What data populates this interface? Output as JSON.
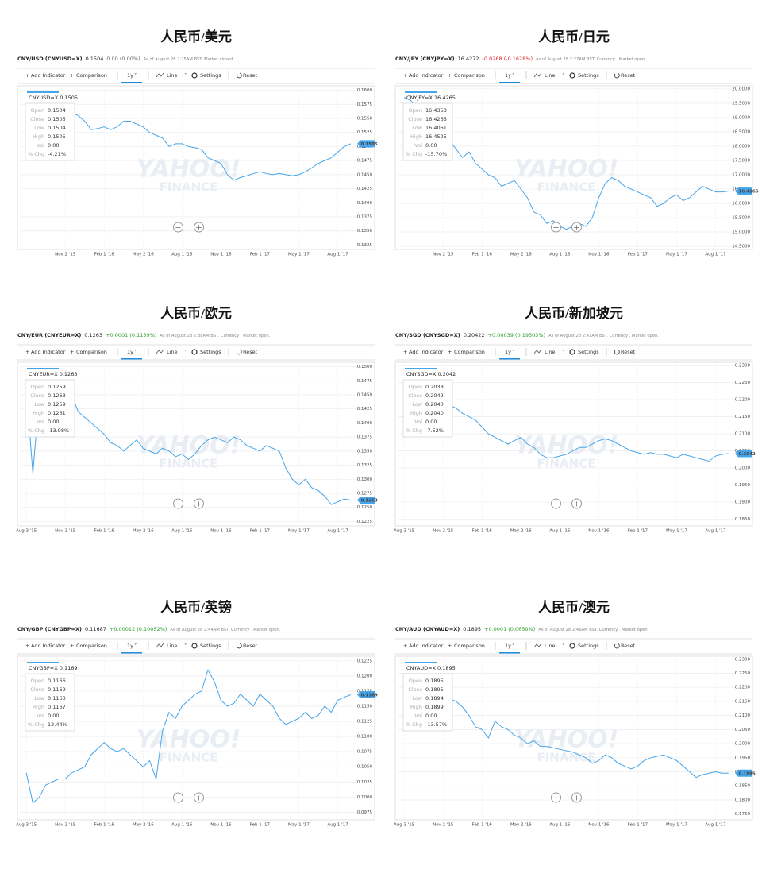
{
  "toolbar": {
    "add_indicator": "Add Indicator",
    "comparison": "Comparison",
    "range": "1y",
    "chart_style": "Line",
    "settings": "Settings",
    "reset": "Reset"
  },
  "tooltip_labels": [
    "Open",
    "Close",
    "Low",
    "High",
    "Vol",
    "% Chg"
  ],
  "watermark": {
    "line1": "YAHOO!",
    "line2": "FINANCE"
  },
  "chart_data": [
    {
      "type": "line",
      "title": "人民币/美元",
      "symbol": "CNY/USD (CNYUSD=X)",
      "price": "0.1504",
      "change": "0.00 (0.00%)",
      "change_color": "#666666",
      "note": "As of August 28 2:25AM BST. Market closed.",
      "tooltip": {
        "label": "CNYUSD=X 0.1505",
        "values": [
          "0.1504",
          "0.1505",
          "0.1504",
          "0.1505",
          "0.00",
          "-4.21%"
        ]
      },
      "last_label": "0.1505",
      "color": "#45a5ea",
      "grid": true,
      "xlim": [
        -1,
        51
      ],
      "xticks": [
        {
          "value": 6,
          "label": "Nov 2 '15"
        },
        {
          "value": 12,
          "label": "Feb 1 '16"
        },
        {
          "value": 18,
          "label": "May 2 '16"
        },
        {
          "value": 24,
          "label": "Aug 1 '16"
        },
        {
          "value": 30,
          "label": "Nov 1 '16"
        },
        {
          "value": 36,
          "label": "Feb 1 '17"
        },
        {
          "value": 42,
          "label": "May 1 '17"
        },
        {
          "value": 48,
          "label": "Aug 1 '17"
        }
      ],
      "ylim": [
        0.132,
        0.1605
      ],
      "yticks": [
        {
          "value": 0.16,
          "label": "0.1600"
        },
        0.1575,
        {
          "value": 0.155,
          "label": "0.1550"
        },
        0.1525,
        {
          "value": 0.15,
          "label": "0.1500"
        },
        0.1475,
        {
          "value": 0.145,
          "label": "0.1450"
        },
        0.1425,
        {
          "value": 0.14,
          "label": "0.1400"
        },
        0.1375,
        {
          "value": 0.135,
          "label": "0.1350"
        },
        0.1325
      ],
      "values": [
        0.157,
        0.1565,
        0.1568,
        0.1572,
        0.1573,
        0.157,
        0.1565,
        0.156,
        0.1555,
        0.1545,
        0.153,
        0.1532,
        0.1535,
        0.153,
        0.1535,
        0.1545,
        0.1545,
        0.154,
        0.1535,
        0.1525,
        0.152,
        0.1515,
        0.15,
        0.1505,
        0.1505,
        0.15,
        0.1498,
        0.1495,
        0.148,
        0.1475,
        0.147,
        0.145,
        0.144,
        0.1445,
        0.1448,
        0.1452,
        0.1455,
        0.1452,
        0.145,
        0.1452,
        0.145,
        0.1448,
        0.145,
        0.1455,
        0.1462,
        0.147,
        0.1475,
        0.148,
        0.149,
        0.15,
        0.1505
      ]
    },
    {
      "type": "line",
      "title": "人民币/日元",
      "symbol": "CNY/JPY (CNYJPY=X)",
      "price": "16.4272",
      "change": "-0.0268 (-0.1628%)",
      "change_color": "#e0272f",
      "note": "As of August 28 2:27AM BST. Currency . Market open.",
      "tooltip": {
        "label": "CNYJPY=X 16.4265",
        "values": [
          "16.4353",
          "16.4265",
          "16.4061",
          "16.4525",
          "0.00",
          "-15.70%"
        ]
      },
      "last_label": "16.4265",
      "color": "#45a5ea",
      "grid": true,
      "xlim": [
        -1,
        51
      ],
      "xticks": [
        {
          "value": 6,
          "label": "Nov 2 '15"
        },
        {
          "value": 12,
          "label": "Feb 1 '16"
        },
        {
          "value": 18,
          "label": "May 2 '16"
        },
        {
          "value": 24,
          "label": "Aug 1 '16"
        },
        {
          "value": 30,
          "label": "Nov 1 '16"
        },
        {
          "value": 36,
          "label": "Feb 1 '17"
        },
        {
          "value": 42,
          "label": "May 1 '17"
        },
        {
          "value": 48,
          "label": "Aug 1 '17"
        }
      ],
      "ylim": [
        14.45,
        20.05
      ],
      "yticks": [
        {
          "value": 20,
          "label": "20.0000"
        },
        {
          "value": 19.5,
          "label": "19.5000"
        },
        {
          "value": 19,
          "label": "19.0000"
        },
        {
          "value": 18.5,
          "label": "18.5000"
        },
        {
          "value": 18,
          "label": "18.0000"
        },
        {
          "value": 17.5,
          "label": "17.5000"
        },
        {
          "value": 17,
          "label": "17.0000"
        },
        {
          "value": 16.5,
          "label": "16.5000"
        },
        {
          "value": 16,
          "label": "16.0000"
        },
        {
          "value": 15.5,
          "label": "15.5000"
        },
        {
          "value": 15,
          "label": "15.0000"
        },
        {
          "value": 14.5,
          "label": "14.5000"
        }
      ],
      "values": [
        19.7,
        19.6,
        19.3,
        19.2,
        19.3,
        19.0,
        18.6,
        18.2,
        17.9,
        17.6,
        17.8,
        17.4,
        17.2,
        17.0,
        16.9,
        16.6,
        16.7,
        16.8,
        16.5,
        16.2,
        15.7,
        15.6,
        15.3,
        15.4,
        15.2,
        15.1,
        15.2,
        15.3,
        15.2,
        15.5,
        16.2,
        16.7,
        16.9,
        16.8,
        16.6,
        16.5,
        16.4,
        16.3,
        16.2,
        15.9,
        16.0,
        16.2,
        16.3,
        16.1,
        16.2,
        16.4,
        16.6,
        16.5,
        16.4,
        16.4,
        16.43
      ]
    },
    {
      "type": "line",
      "title": "人民币/欧元",
      "symbol": "CNY/EUR (CNYEUR=X)",
      "price": "0.1263",
      "change": "+0.0001 (0.1159%)",
      "change_color": "#2ca02c",
      "note": "As of August 28 2:38AM BST. Currency . Market open.",
      "tooltip": {
        "label": "CNYEUR=X 0.1263",
        "values": [
          "0.1259",
          "0.1263",
          "0.1259",
          "0.1261",
          "0.00",
          "-13.98%"
        ]
      },
      "last_label": "0.1263",
      "color": "#45a5ea",
      "grid": true,
      "xlim": [
        -1,
        51
      ],
      "xticks": [
        {
          "value": 0,
          "label": "Aug 3 '15"
        },
        {
          "value": 6,
          "label": "Nov 2 '15"
        },
        {
          "value": 12,
          "label": "Feb 1 '16"
        },
        {
          "value": 18,
          "label": "May 2 '16"
        },
        {
          "value": 24,
          "label": "Aug 1 '16"
        },
        {
          "value": 30,
          "label": "Nov 1 '16"
        },
        {
          "value": 36,
          "label": "Feb 1 '17"
        },
        {
          "value": 42,
          "label": "May 1 '17"
        },
        {
          "value": 48,
          "label": "Aug 1 '17"
        }
      ],
      "ylim": [
        0.122,
        0.1505
      ],
      "yticks": [
        {
          "value": 0.15,
          "label": "0.1500"
        },
        0.1475,
        {
          "value": 0.145,
          "label": "0.1450"
        },
        0.1425,
        {
          "value": 0.14,
          "label": "0.1400"
        },
        0.1375,
        {
          "value": 0.135,
          "label": "0.1350"
        },
        0.1325,
        {
          "value": 0.13,
          "label": "0.1300"
        },
        0.1275,
        {
          "value": 0.125,
          "label": "0.1250"
        },
        0.1225
      ],
      "values": [
        0.1465,
        0.131,
        0.145,
        0.144,
        0.1455,
        0.143,
        0.144,
        0.145,
        0.142,
        0.141,
        0.14,
        0.139,
        0.138,
        0.1365,
        0.136,
        0.135,
        0.136,
        0.137,
        0.1355,
        0.135,
        0.1345,
        0.1355,
        0.135,
        0.134,
        0.1345,
        0.1335,
        0.1345,
        0.136,
        0.137,
        0.1375,
        0.137,
        0.1365,
        0.1375,
        0.137,
        0.136,
        0.1355,
        0.135,
        0.136,
        0.1355,
        0.135,
        0.132,
        0.13,
        0.129,
        0.13,
        0.1285,
        0.128,
        0.127,
        0.1255,
        0.126,
        0.1265,
        0.1263
      ]
    },
    {
      "type": "line",
      "title": "人民币/新加坡元",
      "symbol": "CNY/SGD (CNYSGD=X)",
      "price": "0.20422",
      "change": "+0.00039 (0.19303%)",
      "change_color": "#2ca02c",
      "note": "As of August 28 2:41AM BST. Currency . Market open.",
      "tooltip": {
        "label": "CNYSGD=X 0.2042",
        "values": [
          "0.2038",
          "0.2042",
          "0.2040",
          "0.2040",
          "0.00",
          "-7.52%"
        ]
      },
      "last_label": "0.2042",
      "color": "#45a5ea",
      "grid": true,
      "xlim": [
        -1,
        51
      ],
      "xticks": [
        {
          "value": 0,
          "label": "Aug 3 '15"
        },
        {
          "value": 6,
          "label": "Nov 2 '15"
        },
        {
          "value": 12,
          "label": "Feb 1 '16"
        },
        {
          "value": 18,
          "label": "May 2 '16"
        },
        {
          "value": 24,
          "label": "Aug 1 '16"
        },
        {
          "value": 30,
          "label": "Nov 1 '16"
        },
        {
          "value": 36,
          "label": "Feb 1 '17"
        },
        {
          "value": 42,
          "label": "May 1 '17"
        },
        {
          "value": 48,
          "label": "Aug 1 '17"
        }
      ],
      "ylim": [
        0.1835,
        0.2305
      ],
      "yticks": [
        {
          "value": 0.23,
          "label": "0.2300"
        },
        {
          "value": 0.225,
          "label": "0.2250"
        },
        {
          "value": 0.22,
          "label": "0.2200"
        },
        {
          "value": 0.215,
          "label": "0.2150"
        },
        {
          "value": 0.21,
          "label": "0.2100"
        },
        {
          "value": 0.205,
          "label": "0.2050"
        },
        {
          "value": 0.2,
          "label": "0.2000"
        },
        {
          "value": 0.195,
          "label": "0.1950"
        },
        {
          "value": 0.19,
          "label": "0.1900"
        },
        {
          "value": 0.185,
          "label": "0.1850"
        }
      ],
      "values": [
        0.221,
        0.2205,
        0.223,
        0.2225,
        0.22,
        0.219,
        0.218,
        0.2185,
        0.2175,
        0.216,
        0.215,
        0.214,
        0.212,
        0.21,
        0.209,
        0.208,
        0.207,
        0.208,
        0.209,
        0.207,
        0.206,
        0.204,
        0.203,
        0.203,
        0.2035,
        0.204,
        0.205,
        0.206,
        0.206,
        0.207,
        0.208,
        0.2085,
        0.208,
        0.207,
        0.206,
        0.205,
        0.2045,
        0.204,
        0.2045,
        0.204,
        0.204,
        0.2035,
        0.203,
        0.204,
        0.2035,
        0.203,
        0.2025,
        0.202,
        0.2035,
        0.204,
        0.2042
      ]
    },
    {
      "type": "line",
      "title": "人民币/英镑",
      "symbol": "CNY/GBP (CNYGBP=X)",
      "price": "0.11687",
      "change": "+0.00012 (0.10052%)",
      "change_color": "#2ca02c",
      "note": "As of August 28 2:44AM BST. Currency . Market open.",
      "tooltip": {
        "label": "CNYGBP=X 0.1169",
        "values": [
          "0.1166",
          "0.1169",
          "0.1163",
          "0.1167",
          "0.00",
          "12.44%"
        ]
      },
      "last_label": "0.1169",
      "color": "#45a5ea",
      "grid": true,
      "xlim": [
        -1,
        51
      ],
      "xticks": [
        {
          "value": 0,
          "label": "Aug 3 '15"
        },
        {
          "value": 6,
          "label": "Nov 2 '15"
        },
        {
          "value": 12,
          "label": "Feb 1 '16"
        },
        {
          "value": 18,
          "label": "May 2 '16"
        },
        {
          "value": 24,
          "label": "Aug 1 '16"
        },
        {
          "value": 30,
          "label": "Nov 1 '16"
        },
        {
          "value": 36,
          "label": "Feb 1 '17"
        },
        {
          "value": 42,
          "label": "May 1 '17"
        },
        {
          "value": 48,
          "label": "Aug 1 '17"
        }
      ],
      "ylim": [
        0.0965,
        0.123
      ],
      "yticks": [
        0.1225,
        {
          "value": 0.12,
          "label": "0.1200"
        },
        0.1175,
        {
          "value": 0.115,
          "label": "0.1150"
        },
        0.1125,
        {
          "value": 0.11,
          "label": "0.1100"
        },
        0.1075,
        {
          "value": 0.105,
          "label": "0.1050"
        },
        0.1025,
        {
          "value": 0.1,
          "label": "0.1000"
        },
        0.0975
      ],
      "values": [
        0.104,
        0.099,
        0.1,
        0.102,
        0.1025,
        0.103,
        0.103,
        0.104,
        0.1045,
        0.105,
        0.107,
        0.108,
        0.109,
        0.108,
        0.1075,
        0.108,
        0.107,
        0.106,
        0.105,
        0.106,
        0.103,
        0.111,
        0.114,
        0.113,
        0.115,
        0.116,
        0.117,
        0.1175,
        0.121,
        0.119,
        0.116,
        0.115,
        0.1155,
        0.117,
        0.116,
        0.115,
        0.117,
        0.116,
        0.115,
        0.113,
        0.112,
        0.1125,
        0.113,
        0.114,
        0.113,
        0.1135,
        0.115,
        0.114,
        0.116,
        0.1165,
        0.1169
      ]
    },
    {
      "type": "line",
      "title": "人民币/澳元",
      "symbol": "CNY/AUD (CNYAUD=X)",
      "price": "0.1895",
      "change": "+0.0001 (0.0650%)",
      "change_color": "#2ca02c",
      "note": "As of August 28 2:46AM BST. Currency . Market open.",
      "tooltip": {
        "label": "CNYAUD=X 0.1895",
        "values": [
          "0.1895",
          "0.1895",
          "0.1894",
          "0.1899",
          "0.00",
          "-13.57%"
        ]
      },
      "last_label": "0.1895",
      "color": "#45a5ea",
      "grid": true,
      "xlim": [
        -1,
        51
      ],
      "xticks": [
        {
          "value": 0,
          "label": "Aug 3 '15"
        },
        {
          "value": 6,
          "label": "Nov 2 '15"
        },
        {
          "value": 12,
          "label": "Feb 1 '16"
        },
        {
          "value": 18,
          "label": "May 2 '16"
        },
        {
          "value": 24,
          "label": "Aug 1 '16"
        },
        {
          "value": 30,
          "label": "Nov 1 '16"
        },
        {
          "value": 36,
          "label": "Feb 1 '17"
        },
        {
          "value": 42,
          "label": "May 1 '17"
        },
        {
          "value": 48,
          "label": "Aug 1 '17"
        }
      ],
      "ylim": [
        0.1735,
        0.2305
      ],
      "yticks": [
        {
          "value": 0.23,
          "label": "0.2300"
        },
        {
          "value": 0.225,
          "label": "0.2250"
        },
        {
          "value": 0.22,
          "label": "0.2200"
        },
        {
          "value": 0.215,
          "label": "0.2150"
        },
        {
          "value": 0.21,
          "label": "0.2100"
        },
        {
          "value": 0.205,
          "label": "0.2050"
        },
        {
          "value": 0.2,
          "label": "0.2000"
        },
        {
          "value": 0.195,
          "label": "0.1950"
        },
        {
          "value": 0.19,
          "label": "0.1900"
        },
        {
          "value": 0.185,
          "label": "0.1850"
        },
        {
          "value": 0.18,
          "label": "0.1800"
        },
        {
          "value": 0.175,
          "label": "0.1750"
        }
      ],
      "values": [
        0.219,
        0.218,
        0.217,
        0.2175,
        0.223,
        0.221,
        0.219,
        0.216,
        0.215,
        0.213,
        0.21,
        0.206,
        0.205,
        0.202,
        0.208,
        0.206,
        0.205,
        0.203,
        0.202,
        0.2,
        0.201,
        0.199,
        0.199,
        0.1985,
        0.198,
        0.1975,
        0.197,
        0.196,
        0.195,
        0.193,
        0.194,
        0.196,
        0.195,
        0.193,
        0.192,
        0.191,
        0.192,
        0.194,
        0.195,
        0.1955,
        0.196,
        0.195,
        0.194,
        0.192,
        0.19,
        0.188,
        0.189,
        0.1895,
        0.19,
        0.1895,
        0.1895
      ]
    }
  ]
}
